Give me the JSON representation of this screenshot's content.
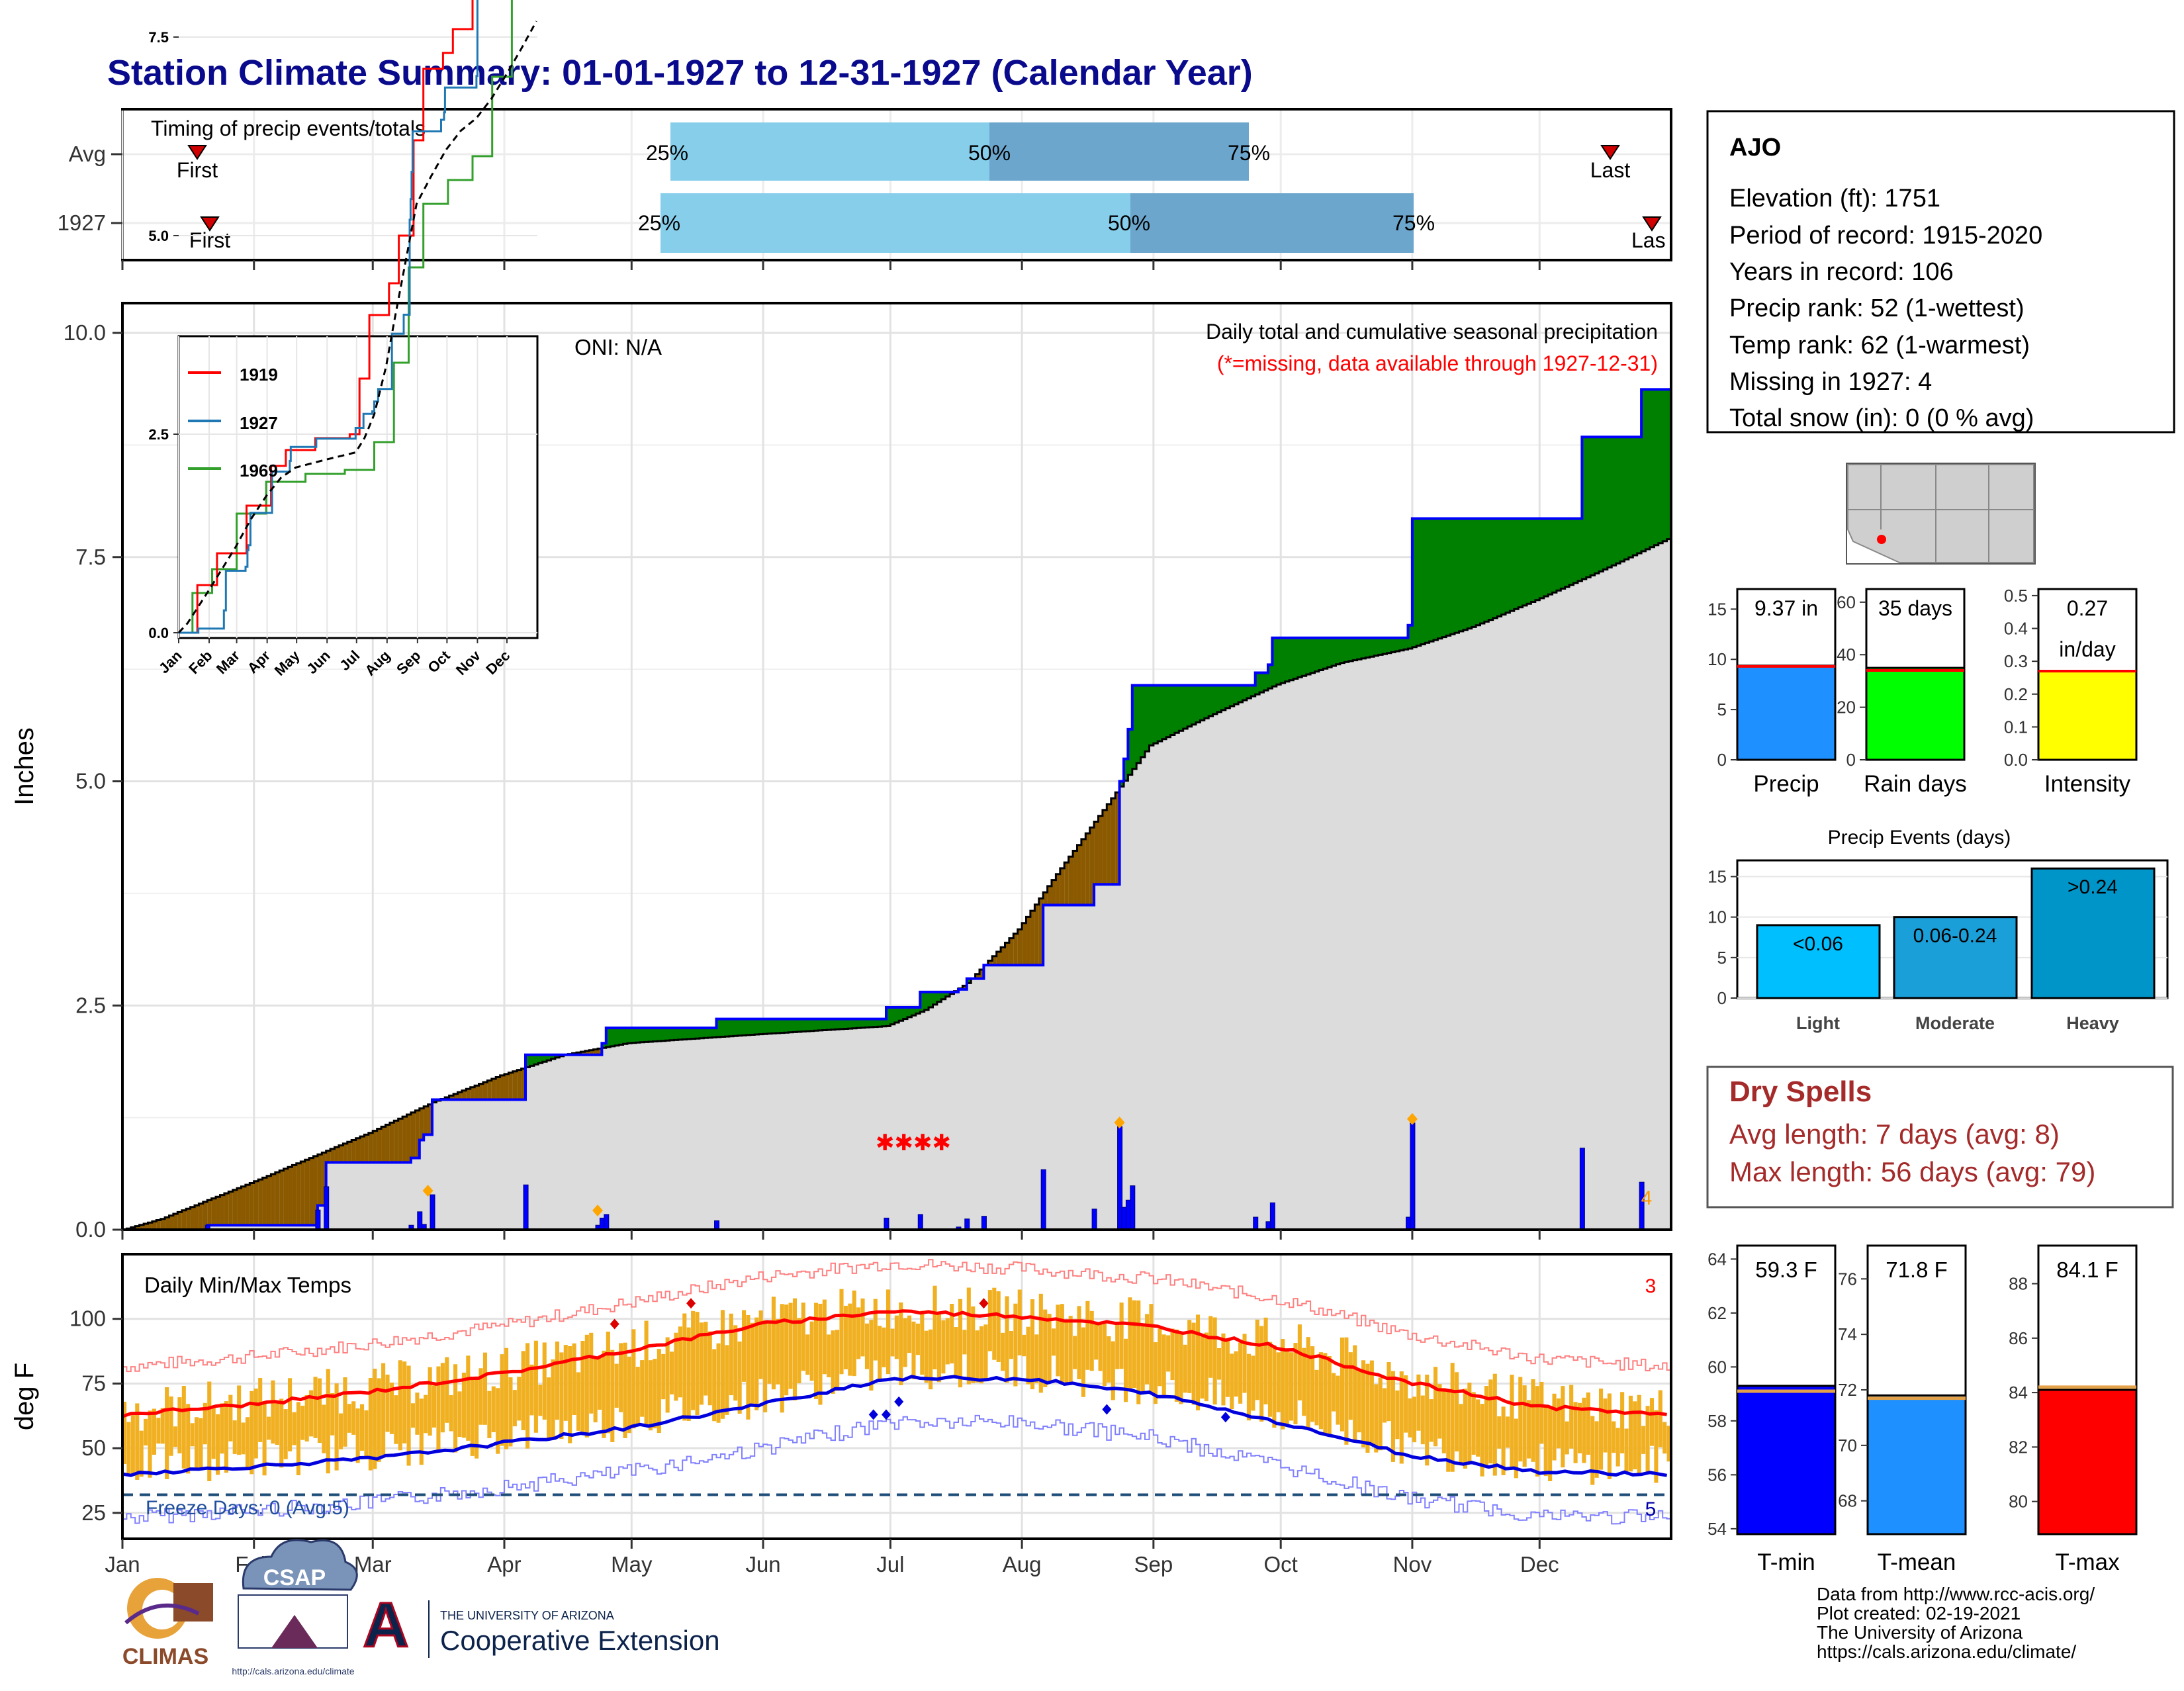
{
  "title": "Station Climate Summary: 01-01-1927 to 12-31-1927 (Calendar Year)",
  "colors": {
    "title": "#0a0a8c",
    "light_blue": "#87ceeb",
    "mid_blue": "#6ca6cd",
    "green": "#008000",
    "brown": "#8b5a00",
    "cum_fill": "#dcdcdc",
    "bar_blue": "#0000ff",
    "gold": "#f0b021",
    "red": "#ff0000",
    "dry_spell_text": "#a52a2a"
  },
  "timing": {
    "title": "Timing of precip events/totals",
    "row_labels": [
      "Avg",
      "1927"
    ],
    "avg": {
      "first": "First",
      "last": "Last",
      "p25": "25%",
      "p50": "50%",
      "p75": "75%"
    },
    "y1927": {
      "first": "First",
      "last": "Las",
      "p25": "25%",
      "p50": "50%",
      "p75": "75%"
    }
  },
  "precip_panel": {
    "annotation_top": "Daily total and cumulative seasonal precipitation",
    "annotation_missing": "(*=missing, data available through 1927-12-31)",
    "oni": "ONI: N/A",
    "ylabel": "Inches",
    "yticks": [
      "0.0",
      "2.5",
      "5.0",
      "7.5",
      "10.0"
    ],
    "corner_count": "4"
  },
  "inset": {
    "legend": [
      "1919",
      "1927",
      "1969"
    ],
    "yticks": [
      "0.0",
      "2.5",
      "5.0",
      "7.5"
    ],
    "xticks": [
      "Jan",
      "Feb",
      "Mar",
      "Apr",
      "May",
      "Jun",
      "Jul",
      "Aug",
      "Sep",
      "Oct",
      "Nov",
      "Dec"
    ]
  },
  "temp_panel": {
    "title": "Daily Min/Max Temps",
    "ylabel": "deg F",
    "yticks": [
      "25",
      "50",
      "75",
      "100"
    ],
    "freeze": "Freeze Days: 0 (Avg:5)",
    "count_top": "3",
    "count_bottom": "5"
  },
  "months": [
    "Jan",
    "Feb",
    "Mar",
    "Apr",
    "May",
    "Jun",
    "Jul",
    "Aug",
    "Sep",
    "Oct",
    "Nov",
    "Dec"
  ],
  "station": {
    "name": "AJO",
    "lines": [
      "Elevation (ft): 1751",
      "Period of record: 1915-2020",
      "Years in record: 106",
      "Precip rank: 52 (1-wettest)",
      "Temp rank: 62 (1-warmest)",
      "Missing in 1927: 4",
      "Total snow (in): 0 (0 % avg)"
    ]
  },
  "gauges": [
    {
      "label": "Precip",
      "value_text": "9.37 in",
      "yticks": [
        "0",
        "5",
        "10",
        "15"
      ]
    },
    {
      "label": "Rain days",
      "value_text": "35 days",
      "yticks": [
        "0",
        "20",
        "40",
        "60"
      ]
    },
    {
      "label": "Intensity",
      "value_text": "0.27",
      "value_text2": "in/day",
      "yticks": [
        "0.0",
        "0.1",
        "0.2",
        "0.3",
        "0.4",
        "0.5"
      ]
    }
  ],
  "events": {
    "title": "Precip Events (days)",
    "yticks": [
      "0",
      "5",
      "10",
      "15"
    ],
    "bars": [
      {
        "category": "Light",
        "label": "<0.06"
      },
      {
        "category": "Moderate",
        "label": "0.06-0.24"
      },
      {
        "category": "Heavy",
        "label": ">0.24"
      }
    ]
  },
  "dry_spells": {
    "title": "Dry Spells",
    "avg": "Avg length: 7 days (avg: 8)",
    "max": "Max length: 56 days (avg: 79)"
  },
  "temp_gauges": [
    {
      "label": "T-min",
      "value_text": "59.3 F",
      "yticks": [
        "54",
        "56",
        "58",
        "60",
        "62",
        "64"
      ]
    },
    {
      "label": "T-mean",
      "value_text": "71.8 F",
      "yticks": [
        "68",
        "70",
        "72",
        "74",
        "76"
      ]
    },
    {
      "label": "T-max",
      "value_text": "84.1 F",
      "yticks": [
        "80",
        "82",
        "84",
        "86",
        "88"
      ]
    }
  ],
  "footer": {
    "lines": [
      "Data from http://www.rcc-acis.org/",
      "Plot created: 02-19-2021",
      "The University of Arizona",
      "https://cals.arizona.edu/climate/"
    ],
    "logo_climas": "CLIMAS",
    "logo_csap": "CSAP",
    "logo_csap_url": "http://cals.arizona.edu/climate",
    "ua_small": "THE UNIVERSITY OF ARIZONA",
    "ua_big": "Cooperative Extension",
    "ua_letter": "A"
  },
  "chart_data": {
    "type": "area",
    "title": "Daily total and cumulative seasonal precipitation",
    "ylabel": "Inches",
    "ylim": [
      0,
      10
    ],
    "x_unit": "day of year",
    "cumulative_1927": [
      [
        1,
        0
      ],
      [
        21,
        0.05
      ],
      [
        46,
        0.05
      ],
      [
        47,
        0.27
      ],
      [
        48,
        0.27
      ],
      [
        49,
        0.75
      ],
      [
        68,
        0.75
      ],
      [
        69,
        0.8
      ],
      [
        71,
        1.0
      ],
      [
        72,
        1.06
      ],
      [
        74,
        1.45
      ],
      [
        95,
        1.45
      ],
      [
        96,
        1.95
      ],
      [
        113,
        1.95
      ],
      [
        114,
        2.08
      ],
      [
        115,
        2.25
      ],
      [
        140,
        2.25
      ],
      [
        141,
        2.35
      ],
      [
        180,
        2.35
      ],
      [
        181,
        2.48
      ],
      [
        188,
        2.48
      ],
      [
        189,
        2.65
      ],
      [
        197,
        2.65
      ],
      [
        198,
        2.68
      ],
      [
        200,
        2.8
      ],
      [
        203,
        2.8
      ],
      [
        204,
        2.95
      ],
      [
        217,
        2.95
      ],
      [
        218,
        3.62
      ],
      [
        228,
        3.62
      ],
      [
        230,
        3.85
      ],
      [
        235,
        3.85
      ],
      [
        236,
        5.0
      ],
      [
        237,
        5.25
      ],
      [
        238,
        5.58
      ],
      [
        239,
        6.07
      ],
      [
        267,
        6.07
      ],
      [
        268,
        6.21
      ],
      [
        271,
        6.3
      ],
      [
        272,
        6.6
      ],
      [
        303,
        6.6
      ],
      [
        304,
        6.74
      ],
      [
        305,
        7.93
      ],
      [
        344,
        7.93
      ],
      [
        345,
        8.84
      ],
      [
        358,
        8.84
      ],
      [
        359,
        9.37
      ],
      [
        365,
        9.37
      ]
    ],
    "cumulative_average": [
      [
        1,
        0
      ],
      [
        10,
        0.12
      ],
      [
        31,
        0.52
      ],
      [
        59,
        1.08
      ],
      [
        74,
        1.42
      ],
      [
        90,
        1.72
      ],
      [
        105,
        1.95
      ],
      [
        120,
        2.08
      ],
      [
        151,
        2.18
      ],
      [
        181,
        2.27
      ],
      [
        190,
        2.45
      ],
      [
        200,
        2.75
      ],
      [
        212,
        3.35
      ],
      [
        220,
        3.9
      ],
      [
        232,
        4.68
      ],
      [
        243,
        5.4
      ],
      [
        258,
        5.75
      ],
      [
        273,
        6.08
      ],
      [
        288,
        6.32
      ],
      [
        304,
        6.48
      ],
      [
        319,
        6.72
      ],
      [
        334,
        7.02
      ],
      [
        349,
        7.34
      ],
      [
        365,
        7.7
      ]
    ],
    "daily_precip_1927": [
      [
        21,
        0.05
      ],
      [
        47,
        0.22
      ],
      [
        49,
        0.48
      ],
      [
        69,
        0.05
      ],
      [
        71,
        0.2
      ],
      [
        72,
        0.06
      ],
      [
        74,
        0.39
      ],
      [
        96,
        0.5
      ],
      [
        113,
        0.05
      ],
      [
        114,
        0.13
      ],
      [
        115,
        0.17
      ],
      [
        141,
        0.1
      ],
      [
        181,
        0.13
      ],
      [
        189,
        0.17
      ],
      [
        198,
        0.03
      ],
      [
        200,
        0.12
      ],
      [
        204,
        0.15
      ],
      [
        218,
        0.67
      ],
      [
        230,
        0.23
      ],
      [
        236,
        1.15
      ],
      [
        237,
        0.25
      ],
      [
        238,
        0.33
      ],
      [
        239,
        0.49
      ],
      [
        268,
        0.14
      ],
      [
        271,
        0.09
      ],
      [
        272,
        0.3
      ],
      [
        304,
        0.14
      ],
      [
        305,
        1.19
      ],
      [
        345,
        0.91
      ],
      [
        359,
        0.53
      ]
    ],
    "missing_days": [
      185,
      186,
      187,
      188
    ],
    "inset_series": [
      "1919",
      "1927",
      "1969"
    ],
    "temperature": {
      "ylabel": "deg F",
      "ylim": [
        15,
        125
      ],
      "normal_max": [
        [
          1,
          63
        ],
        [
          32,
          67
        ],
        [
          60,
          72
        ],
        [
          91,
          79
        ],
        [
          121,
          88
        ],
        [
          152,
          98
        ],
        [
          182,
          103
        ],
        [
          213,
          101
        ],
        [
          244,
          97
        ],
        [
          274,
          89
        ],
        [
          305,
          75
        ],
        [
          335,
          66
        ],
        [
          365,
          63
        ]
      ],
      "normal_min": [
        [
          1,
          40
        ],
        [
          32,
          43
        ],
        [
          60,
          46
        ],
        [
          91,
          52
        ],
        [
          121,
          58
        ],
        [
          152,
          67
        ],
        [
          182,
          77
        ],
        [
          213,
          77
        ],
        [
          244,
          71
        ],
        [
          274,
          60
        ],
        [
          305,
          47
        ],
        [
          335,
          41
        ],
        [
          365,
          40
        ]
      ],
      "freeze_line": 32
    },
    "summary": {
      "precip_in": 9.37,
      "rain_days": 35,
      "intensity_in_per_day": 0.27,
      "tmin_F": 59.3,
      "tmean_F": 71.8,
      "tmax_F": 84.1
    },
    "events_days": {
      "Light": 9,
      "Moderate": 10,
      "Heavy": 16
    }
  }
}
